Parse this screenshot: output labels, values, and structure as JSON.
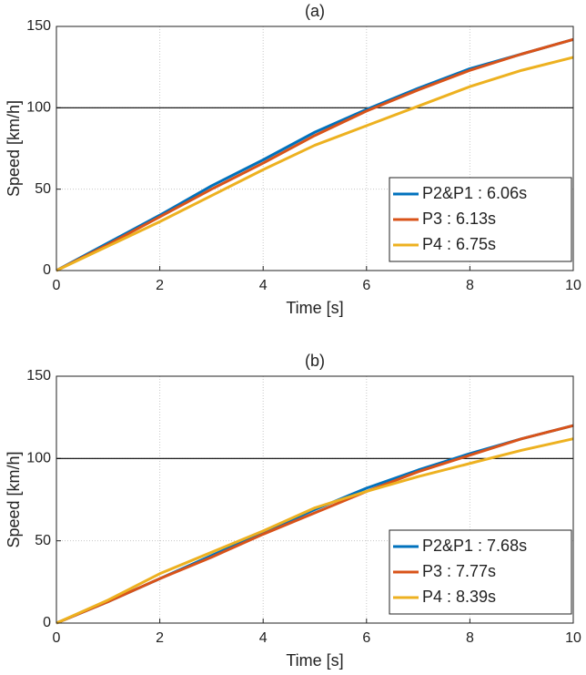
{
  "chart_data": [
    {
      "type": "line",
      "title": "(a)",
      "x_label": "Time [s]",
      "y_label": "Speed [km/h]",
      "x": [
        0,
        1,
        2,
        3,
        4,
        5,
        6,
        7,
        8,
        9,
        10
      ],
      "series": [
        {
          "name": "P2&P1 : 6.06s",
          "color": "#0072bd",
          "values": [
            0,
            17,
            34,
            52,
            68,
            85,
            99,
            112,
            124,
            133,
            142
          ]
        },
        {
          "name": "P3 : 6.13s",
          "color": "#d95319",
          "values": [
            0,
            16,
            33,
            50,
            66,
            83,
            98,
            111,
            123,
            133,
            142
          ]
        },
        {
          "name": "P4 : 6.75s",
          "color": "#edb120",
          "values": [
            0,
            15,
            30,
            46,
            62,
            77,
            89,
            101,
            113,
            123,
            131
          ]
        }
      ],
      "xlim": [
        0,
        10
      ],
      "xticks": [
        0,
        2,
        4,
        6,
        8,
        10
      ],
      "ylim": [
        0,
        150
      ],
      "yticks": [
        0,
        50,
        100,
        150
      ],
      "reference_line": 100,
      "grid": true,
      "legend": "lower right"
    },
    {
      "type": "line",
      "title": "(b)",
      "x_label": "Time [s]",
      "y_label": "Speed [km/h]",
      "x": [
        0,
        1,
        2,
        3,
        4,
        5,
        6,
        7,
        8,
        9,
        10
      ],
      "series": [
        {
          "name": "P2&P1 : 7.68s",
          "color": "#0072bd",
          "values": [
            0,
            13,
            27,
            41,
            55,
            69,
            82,
            93,
            103,
            112,
            120
          ]
        },
        {
          "name": "P3 : 7.77s",
          "color": "#d95319",
          "values": [
            0,
            13,
            27,
            40,
            54,
            67,
            80,
            92,
            102,
            112,
            120
          ]
        },
        {
          "name": "P4 : 8.39s",
          "color": "#edb120",
          "values": [
            0,
            14,
            30,
            43,
            56,
            70,
            80,
            89,
            97,
            105,
            112
          ]
        }
      ],
      "xlim": [
        0,
        10
      ],
      "xticks": [
        0,
        2,
        4,
        6,
        8,
        10
      ],
      "ylim": [
        0,
        150
      ],
      "yticks": [
        0,
        50,
        100,
        150
      ],
      "reference_line": 100,
      "grid": true,
      "legend": "lower right"
    }
  ]
}
